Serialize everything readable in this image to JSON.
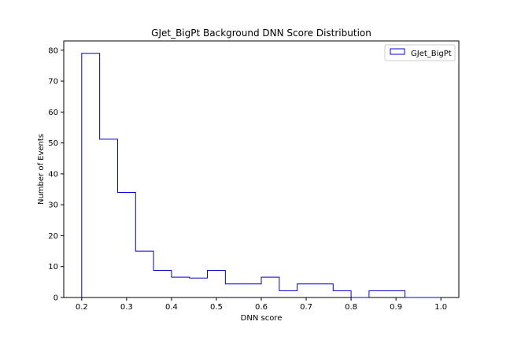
{
  "chart_data": {
    "type": "bar",
    "title": "GJet_BigPt Background DNN Score Distribution",
    "xlabel": "DNN score",
    "ylabel": "Number of Events",
    "xlim": [
      0.16,
      1.04
    ],
    "ylim": [
      0,
      83
    ],
    "x_ticks": [
      0.2,
      0.3,
      0.4,
      0.5,
      0.6,
      0.7,
      0.8,
      0.9,
      1.0
    ],
    "x_tick_labels": [
      "0.2",
      "0.3",
      "0.4",
      "0.5",
      "0.6",
      "0.7",
      "0.8",
      "0.9",
      "1.0"
    ],
    "y_ticks": [
      0,
      10,
      20,
      30,
      40,
      50,
      60,
      70,
      80
    ],
    "y_tick_labels": [
      "0",
      "10",
      "20",
      "30",
      "40",
      "50",
      "60",
      "70",
      "80"
    ],
    "bin_edges": [
      0.2,
      0.24,
      0.28,
      0.32,
      0.36,
      0.4,
      0.44,
      0.48,
      0.52,
      0.56,
      0.6,
      0.64,
      0.68,
      0.72,
      0.76,
      0.8,
      0.84,
      0.88,
      0.92,
      0.96,
      1.0
    ],
    "series": [
      {
        "name": "GJet_BigPt",
        "color": "#0000cc",
        "histtype": "step",
        "values": [
          79,
          51.2,
          34,
          15,
          8.8,
          6.6,
          6.3,
          8.8,
          4.4,
          4.4,
          6.6,
          2.2,
          4.4,
          4.4,
          2.2,
          0,
          2.2,
          2.2,
          0,
          0
        ]
      }
    ],
    "legend_position": "top-right",
    "grid": false
  }
}
